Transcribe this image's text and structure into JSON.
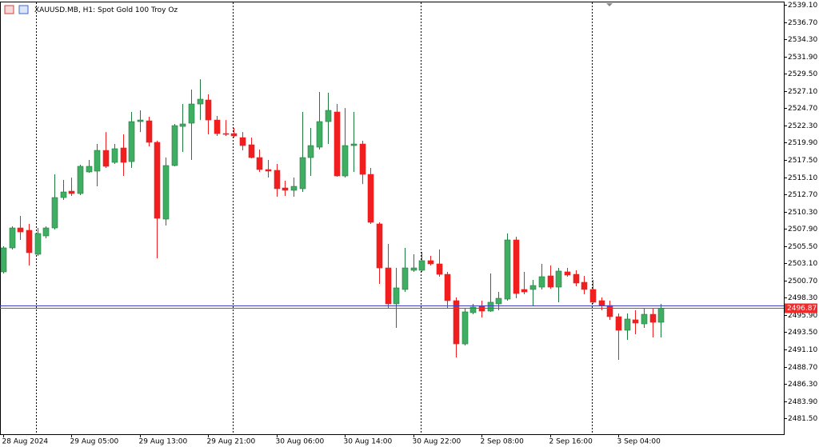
{
  "chart_data": {
    "type": "candlestick",
    "title": "XAUUSD.MB, H1:  Spot Gold 100 Troy Oz",
    "categories": [
      "28 Aug 2024",
      null,
      null,
      null,
      null,
      null,
      null,
      null,
      "29 Aug 05:00",
      null,
      null,
      null,
      null,
      null,
      null,
      null,
      "29 Aug 13:00",
      null,
      null,
      null,
      null,
      null,
      null,
      null,
      "29 Aug 21:00",
      null,
      null,
      null,
      null,
      null,
      null,
      null,
      "30 Aug 06:00",
      null,
      null,
      null,
      null,
      null,
      null,
      null,
      "30 Aug 14:00",
      null,
      null,
      null,
      null,
      null,
      null,
      null,
      "30 Aug 22:00",
      null,
      null,
      null,
      null,
      null,
      null,
      null,
      "2 Sep 08:00",
      null,
      null,
      null,
      null,
      null,
      null,
      null,
      "2 Sep 16:00",
      null,
      null,
      null,
      null,
      null,
      null,
      null,
      "3 Sep 04:00",
      null,
      null,
      null,
      null,
      null
    ],
    "open": [
      2501.91,
      2505.25,
      2508.03,
      2507.7,
      2504.36,
      2506.92,
      2508.03,
      2512.26,
      2513.15,
      2512.82,
      2515.83,
      2515.94,
      2518.83,
      2517.16,
      2519.17,
      2517.27,
      2522.84,
      2522.95,
      2519.95,
      2509.26,
      2516.72,
      2522.17,
      2522.62,
      2525.29,
      2525.85,
      2523.06,
      2521.17,
      2521.17,
      2520.61,
      2519.61,
      2517.83,
      2516.16,
      2516.05,
      2513.6,
      2513.27,
      2513.49,
      2517.83,
      2519.28,
      2522.84,
      2524.18,
      2515.27,
      2519.5,
      2519.72,
      2515.49,
      2508.59,
      2502.46,
      2497.45,
      2499.46,
      2502.13,
      2502.13,
      2503.47,
      2503.02,
      2501.57,
      2497.9,
      2491.88,
      2496.23,
      2497.12,
      2496.45,
      2497.45,
      2498.12,
      2506.36,
      2499.46,
      2499.46,
      2499.79,
      2501.35,
      2499.79,
      2501.91,
      2501.57,
      2500.46,
      2499.46,
      2497.9,
      2497.23,
      2495.67,
      2493.78,
      2495.23,
      2494.67,
      2496.0,
      2494.89
    ],
    "high": [
      2505.47,
      2508.25,
      2509.7,
      2508.59,
      2508.03,
      2508.25,
      2515.49,
      2514.71,
      2515.04,
      2516.83,
      2517.5,
      2519.72,
      2521.39,
      2519.72,
      2521.06,
      2524.18,
      2524.4,
      2523.51,
      2520.17,
      2517.83,
      2522.51,
      2525.29,
      2527.3,
      2528.74,
      2526.63,
      2523.62,
      2523.06,
      2521.95,
      2521.39,
      2520.61,
      2518.94,
      2517.5,
      2516.94,
      2514.6,
      2515.05,
      2524.18,
      2521.95,
      2526.96,
      2526.85,
      2525.29,
      2524.73,
      2524.18,
      2520.17,
      2516.38,
      2508.81,
      2505.8,
      2502.46,
      2505.25,
      2504.36,
      2504.69,
      2504.13,
      2505.03,
      2501.91,
      2498.34,
      2496.89,
      2497.45,
      2497.9,
      2501.68,
      2499.12,
      2507.25,
      2506.81,
      2501.91,
      2500.79,
      2503.02,
      2502.8,
      2502.46,
      2502.46,
      2502.13,
      2501.35,
      2500.79,
      2498.34,
      2497.9,
      2496.11,
      2496.11,
      2496.56,
      2496.89,
      2496.89,
      2497.45
    ],
    "low": [
      2501.68,
      2505.03,
      2506.36,
      2502.8,
      2504.13,
      2506.58,
      2507.81,
      2511.93,
      2512.49,
      2512.6,
      2515.72,
      2513.82,
      2516.38,
      2516.94,
      2515.27,
      2516.38,
      2521.39,
      2519.39,
      2503.8,
      2508.37,
      2516.61,
      2518.61,
      2517.5,
      2523.06,
      2521.06,
      2520.84,
      2520.84,
      2520.61,
      2518.83,
      2517.72,
      2515.83,
      2515.05,
      2512.37,
      2512.49,
      2512.37,
      2513.04,
      2515.27,
      2518.94,
      2519.72,
      2515.16,
      2515.05,
      2515.83,
      2514.15,
      2508.59,
      2500.24,
      2496.89,
      2494.11,
      2499.12,
      2501.91,
      2501.91,
      2502.8,
      2501.24,
      2496.89,
      2489.99,
      2491.66,
      2496.0,
      2495.56,
      2496.34,
      2496.56,
      2497.9,
      2498.23,
      2498.79,
      2497.23,
      2499.46,
      2499.57,
      2497.68,
      2501.24,
      2499.9,
      2498.79,
      2497.45,
      2496.56,
      2495.23,
      2489.66,
      2492.44,
      2493.22,
      2494.11,
      2492.77,
      2492.77
    ],
    "close": [
      2505.25,
      2508.03,
      2507.47,
      2504.58,
      2507.25,
      2508.03,
      2512.26,
      2513.04,
      2512.82,
      2516.61,
      2516.61,
      2518.83,
      2516.61,
      2519.06,
      2517.16,
      2522.84,
      2523.06,
      2519.95,
      2509.37,
      2516.72,
      2522.28,
      2522.51,
      2525.29,
      2525.96,
      2523.06,
      2521.17,
      2521.06,
      2520.84,
      2519.5,
      2517.83,
      2516.16,
      2515.94,
      2513.49,
      2513.27,
      2513.82,
      2517.83,
      2519.5,
      2522.84,
      2524.4,
      2515.27,
      2519.5,
      2519.72,
      2515.49,
      2508.81,
      2502.46,
      2497.45,
      2499.68,
      2502.46,
      2502.46,
      2503.47,
      2503.02,
      2501.57,
      2497.9,
      2491.88,
      2496.34,
      2497.01,
      2496.45,
      2497.68,
      2498.23,
      2506.36,
      2498.9,
      2499.12,
      2500.01,
      2501.24,
      2499.79,
      2502.02,
      2501.46,
      2500.35,
      2499.46,
      2497.68,
      2497.23,
      2495.67,
      2493.78,
      2495.34,
      2494.78,
      2496.0,
      2494.89,
      2496.87
    ],
    "up_color": "#3fae62",
    "down_color": "#f01e1e",
    "ylim": [
      2479.3,
      2539.55
    ],
    "yticks": [
      {
        "value": 2539.1,
        "label": "2539.10"
      },
      {
        "value": 2536.7,
        "label": "2536.70"
      },
      {
        "value": 2534.3,
        "label": "2534.30"
      },
      {
        "value": 2531.9,
        "label": "2531.90"
      },
      {
        "value": 2529.5,
        "label": "2529.50"
      },
      {
        "value": 2527.1,
        "label": "2527.10"
      },
      {
        "value": 2524.7,
        "label": "2524.70"
      },
      {
        "value": 2522.3,
        "label": "2522.30"
      },
      {
        "value": 2519.9,
        "label": "2519.90"
      },
      {
        "value": 2517.5,
        "label": "2517.50"
      },
      {
        "value": 2515.1,
        "label": "2515.10"
      },
      {
        "value": 2512.7,
        "label": "2512.70"
      },
      {
        "value": 2510.3,
        "label": "2510.30"
      },
      {
        "value": 2507.9,
        "label": "2507.90"
      },
      {
        "value": 2505.5,
        "label": "2505.50"
      },
      {
        "value": 2503.1,
        "label": "2503.10"
      },
      {
        "value": 2500.7,
        "label": "2500.70"
      },
      {
        "value": 2498.3,
        "label": "2498.30"
      },
      {
        "value": 2495.9,
        "label": "2495.90"
      },
      {
        "value": 2493.5,
        "label": "2493.50"
      },
      {
        "value": 2491.1,
        "label": "2491.10"
      },
      {
        "value": 2488.7,
        "label": "2488.70"
      },
      {
        "value": 2486.3,
        "label": "2486.30"
      },
      {
        "value": 2483.9,
        "label": "2483.90"
      },
      {
        "value": 2481.5,
        "label": "2481.50"
      }
    ],
    "price_line": {
      "value": 2496.87,
      "label": "2496.87",
      "color": "#ef2b2b"
    },
    "ask_line": {
      "value": 2497.2,
      "color": "#4040c0"
    }
  }
}
